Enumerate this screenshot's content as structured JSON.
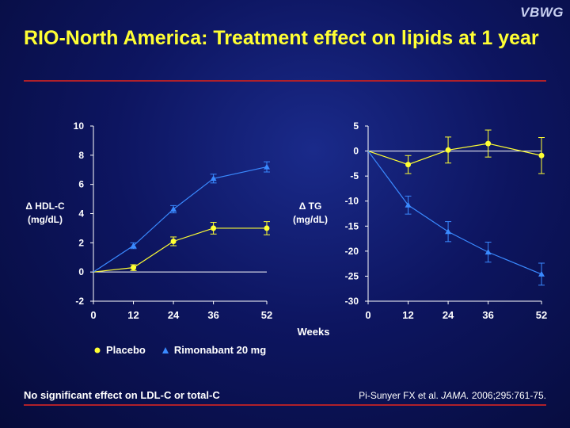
{
  "brand": "VBWG",
  "title": "RIO-North America: Treatment effect on lipids at 1 year",
  "footer": {
    "note": "No significant effect on LDL-C or total-C",
    "citation_author": "Pi-Sunyer FX et al.",
    "citation_journal": "JAMA.",
    "citation_rest": "2006;295:761-75."
  },
  "colors": {
    "placebo": "#ffff33",
    "rimonabant": "#3a8aff",
    "axis": "#ffffff",
    "title": "#ffff33"
  },
  "chart_data": [
    {
      "type": "line",
      "ylabel_line1": "Δ HDL-C",
      "ylabel_line2": "(mg/dL)",
      "x": [
        0,
        12,
        24,
        36,
        52
      ],
      "xticks": [
        "0",
        "12",
        "24",
        "36",
        "52"
      ],
      "yticks": [
        "10",
        "8",
        "6",
        "4",
        "2",
        "0",
        "-2"
      ],
      "ylim": [
        -2,
        10
      ],
      "series": [
        {
          "name": "Placebo",
          "values": [
            0,
            0.3,
            2.1,
            3.0,
            3.0
          ],
          "err": [
            0,
            0.2,
            0.3,
            0.4,
            0.45
          ]
        },
        {
          "name": "Rimonabant 20 mg",
          "values": [
            0,
            1.8,
            4.3,
            6.4,
            7.2
          ],
          "err": [
            0,
            0.2,
            0.25,
            0.3,
            0.35
          ]
        }
      ]
    },
    {
      "type": "line",
      "ylabel_line1": "Δ TG",
      "ylabel_line2": "(mg/dL)",
      "x": [
        0,
        12,
        24,
        36,
        52
      ],
      "xticks": [
        "0",
        "12",
        "24",
        "36",
        "52"
      ],
      "yticks": [
        "5",
        "0",
        "-5",
        "-10",
        "-15",
        "-20",
        "-25",
        "-30"
      ],
      "ylim": [
        -30,
        5
      ],
      "series": [
        {
          "name": "Placebo",
          "values": [
            0,
            -2.7,
            0.2,
            1.5,
            -0.9
          ],
          "err": [
            0,
            1.8,
            2.6,
            2.7,
            3.6
          ]
        },
        {
          "name": "Rimonabant 20 mg",
          "values": [
            0,
            -10.8,
            -16.1,
            -20.2,
            -24.6
          ],
          "err": [
            0,
            1.8,
            2.0,
            2.0,
            2.2
          ]
        }
      ]
    }
  ],
  "xlabel": "Weeks",
  "legend": [
    "Placebo",
    "Rimonabant 20 mg"
  ]
}
